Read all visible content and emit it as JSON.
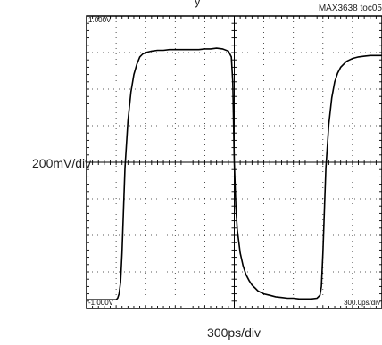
{
  "figure": {
    "header_partial": "y",
    "figure_id": "MAX3638 toc05",
    "xlabel": "300ps/div",
    "ylabel": "200mV/div"
  },
  "chart_data": {
    "type": "line",
    "title": "",
    "xlabel": "300ps/div",
    "ylabel": "200mV/div",
    "x_unit": "ps",
    "y_unit": "V",
    "xlim": [
      -1500,
      1500
    ],
    "ylim": [
      -1.0,
      1.0
    ],
    "x_divisions": 10,
    "y_divisions": 8,
    "grid": true,
    "annotations": {
      "top_left": "1.000V",
      "bottom_left": "-1.000V",
      "bottom_right": "300.0ps/div"
    },
    "series": [
      {
        "x": [
          -1500,
          -1200,
          -1185,
          -1170,
          -1155,
          -1140,
          -1125,
          -1110,
          -1080,
          -1050,
          -1020,
          -990,
          -960,
          -930,
          -900,
          -840,
          -780,
          -720,
          -660,
          -600,
          -540,
          -480,
          -420,
          -360,
          -300,
          -240,
          -180,
          -120,
          -60,
          -30,
          -15,
          0,
          15,
          30,
          60,
          90,
          120,
          150,
          180,
          210,
          240,
          270,
          300,
          360,
          420,
          480,
          540,
          600,
          660,
          720,
          780,
          840,
          870,
          885,
          900,
          915,
          930,
          960,
          990,
          1020,
          1050,
          1080,
          1110,
          1140,
          1170,
          1200,
          1260,
          1320,
          1380,
          1440,
          1500
        ],
        "y": [
          -0.94,
          -0.94,
          -0.93,
          -0.9,
          -0.82,
          -0.62,
          -0.32,
          -0.04,
          0.28,
          0.48,
          0.6,
          0.67,
          0.72,
          0.74,
          0.75,
          0.76,
          0.765,
          0.765,
          0.77,
          0.77,
          0.77,
          0.77,
          0.77,
          0.77,
          0.775,
          0.775,
          0.78,
          0.775,
          0.76,
          0.72,
          0.55,
          0.0,
          -0.3,
          -0.46,
          -0.62,
          -0.71,
          -0.77,
          -0.81,
          -0.84,
          -0.86,
          -0.88,
          -0.89,
          -0.9,
          -0.91,
          -0.92,
          -0.925,
          -0.93,
          -0.93,
          -0.935,
          -0.935,
          -0.935,
          -0.93,
          -0.91,
          -0.85,
          -0.62,
          -0.32,
          -0.04,
          0.26,
          0.44,
          0.55,
          0.61,
          0.65,
          0.67,
          0.69,
          0.7,
          0.71,
          0.72,
          0.725,
          0.73,
          0.73,
          0.73
        ]
      }
    ]
  }
}
